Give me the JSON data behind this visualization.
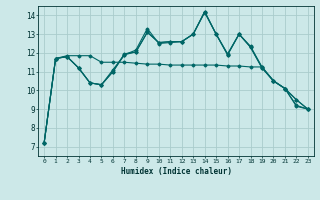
{
  "xlabel": "Humidex (Indice chaleur)",
  "background_color": "#cce8e8",
  "grid_color": "#aacccc",
  "line_color": "#006666",
  "xlim": [
    -0.5,
    23.5
  ],
  "ylim": [
    6.5,
    14.5
  ],
  "xticks": [
    0,
    1,
    2,
    3,
    4,
    5,
    6,
    7,
    8,
    9,
    10,
    11,
    12,
    13,
    14,
    15,
    16,
    17,
    18,
    19,
    20,
    21,
    22,
    23
  ],
  "yticks": [
    7,
    8,
    9,
    10,
    11,
    12,
    13,
    14
  ],
  "series": [
    [
      7.2,
      11.7,
      11.8,
      11.2,
      10.4,
      10.3,
      11.1,
      11.9,
      12.05,
      13.1,
      12.55,
      12.6,
      12.6,
      13.0,
      14.2,
      13.0,
      11.9,
      13.0,
      12.3,
      11.2,
      10.5,
      10.1,
      9.15,
      9.0
    ],
    [
      7.2,
      11.7,
      11.8,
      11.2,
      10.4,
      10.3,
      11.0,
      11.95,
      12.05,
      13.1,
      12.55,
      12.6,
      12.6,
      13.0,
      14.2,
      13.0,
      11.95,
      13.0,
      12.35,
      11.25,
      10.52,
      10.1,
      9.2,
      9.0
    ],
    [
      7.2,
      11.7,
      11.8,
      11.2,
      10.4,
      10.3,
      11.0,
      11.9,
      12.15,
      13.3,
      12.5,
      12.55,
      12.6,
      13.0,
      14.15,
      13.0,
      11.9,
      13.0,
      12.3,
      11.2,
      10.5,
      10.1,
      9.5,
      9.0
    ],
    [
      7.2,
      11.7,
      11.85,
      11.85,
      11.85,
      11.5,
      11.5,
      11.5,
      11.45,
      11.4,
      11.4,
      11.35,
      11.35,
      11.35,
      11.35,
      11.35,
      11.3,
      11.3,
      11.25,
      11.25,
      10.5,
      10.1,
      9.5,
      9.0
    ]
  ]
}
